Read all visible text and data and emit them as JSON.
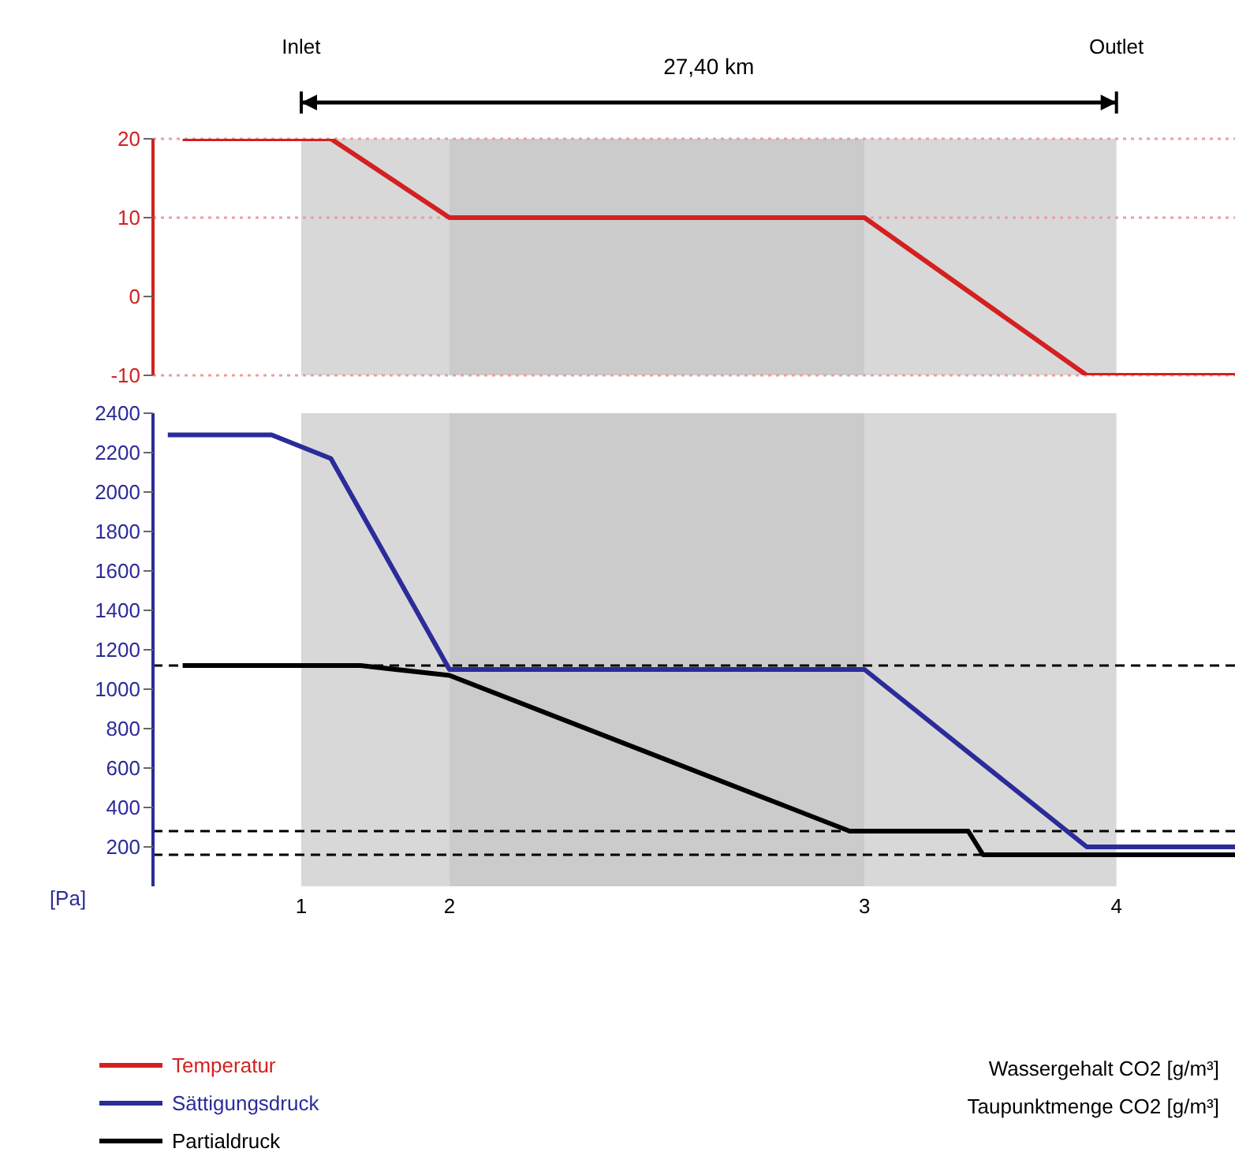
{
  "chart_data": [
    {
      "type": "line",
      "categories": [
        null,
        null,
        null,
        null,
        null,
        null,
        null,
        null,
        null,
        null,
        "1",
        null,
        null,
        null,
        null,
        null,
        null,
        null,
        null,
        null,
        "2",
        null,
        null,
        null,
        null,
        null,
        null,
        null,
        null,
        null,
        null,
        null,
        null,
        null,
        null,
        null,
        null,
        null,
        null,
        null,
        null,
        null,
        null,
        null,
        null,
        null,
        null,
        null,
        "3",
        null,
        null,
        null,
        null,
        null,
        null,
        null,
        null,
        null,
        null,
        null,
        null,
        null,
        null,
        null,
        null,
        "4",
        null,
        null,
        null,
        null,
        null,
        null,
        null,
        null
      ],
      "ylim": [
        -10,
        20
      ],
      "yticks": [
        -10,
        0,
        10,
        20
      ],
      "tick_labels": "y",
      "legend": "bottom left",
      "annotations": [
        "Inlet",
        "27,40 km",
        "Outlet"
      ],
      "series": [
        {
          "name": "Temperatur",
          "color": "#d42020",
          "values": [
            null,
            null,
            20,
            null,
            null,
            null,
            null,
            null,
            null,
            null,
            null,
            null,
            20,
            null,
            null,
            null,
            null,
            null,
            null,
            null,
            10,
            null,
            null,
            null,
            null,
            null,
            null,
            null,
            null,
            null,
            null,
            null,
            null,
            null,
            null,
            null,
            null,
            null,
            null,
            null,
            null,
            null,
            null,
            null,
            null,
            null,
            null,
            null,
            10,
            null,
            null,
            null,
            null,
            null,
            null,
            null,
            null,
            null,
            null,
            null,
            null,
            null,
            null,
            -10,
            null,
            null,
            null,
            null,
            null,
            null,
            null,
            null,
            null,
            -10
          ]
        }
      ],
      "ref_lines": [
        {
          "axis": "y",
          "value": 20,
          "color": "#e8a0a0",
          "line_style": "dotted"
        },
        {
          "axis": "y",
          "value": 10,
          "color": "#e8a0a0",
          "line_style": "dotted"
        },
        {
          "axis": "y",
          "value": -10,
          "color": "#e8a0a0",
          "line_style": "dotted"
        }
      ],
      "bands": [
        {
          "axis": "x",
          "from": "1",
          "to": "2",
          "color": "#a8a8a8"
        },
        {
          "axis": "x",
          "from": "2",
          "to": "3",
          "color": "#8c8c8c"
        },
        {
          "axis": "x",
          "from": "3",
          "to": "4",
          "color": "#a8a8a8"
        }
      ]
    },
    {
      "type": "line",
      "categories": [
        null,
        null,
        null,
        null,
        null,
        null,
        null,
        null,
        null,
        null,
        "1",
        null,
        null,
        null,
        null,
        null,
        null,
        null,
        null,
        null,
        "2",
        null,
        null,
        null,
        null,
        null,
        null,
        null,
        null,
        null,
        null,
        null,
        null,
        null,
        null,
        null,
        null,
        null,
        null,
        null,
        null,
        null,
        null,
        null,
        null,
        null,
        null,
        null,
        "3",
        null,
        null,
        null,
        null,
        null,
        null,
        null,
        null,
        null,
        null,
        null,
        null,
        null,
        null,
        null,
        null,
        "4",
        null,
        null,
        null,
        null,
        null,
        null,
        null,
        null
      ],
      "ylim": [
        0,
        2400
      ],
      "yticks": [
        200,
        400,
        600,
        800,
        1000,
        1200,
        1400,
        1600,
        1800,
        2000,
        2200,
        2400
      ],
      "ylabel": "[Pa]",
      "legend": "bottom left",
      "annotations": [
        "Wassergehalt CO2 [g/m³]",
        "Taupunktmenge CO2 [g/m³]"
      ],
      "series": [
        {
          "name": "Sättigungsdruck",
          "color": "#2b2b9a",
          "values": [
            null,
            2290,
            null,
            null,
            null,
            null,
            null,
            null,
            2290,
            null,
            null,
            null,
            2170,
            null,
            null,
            null,
            null,
            null,
            null,
            null,
            1100,
            null,
            null,
            null,
            null,
            null,
            null,
            null,
            null,
            null,
            null,
            null,
            null,
            null,
            null,
            null,
            null,
            null,
            null,
            null,
            null,
            null,
            null,
            null,
            null,
            null,
            null,
            null,
            1100,
            null,
            null,
            null,
            null,
            null,
            null,
            null,
            null,
            null,
            null,
            null,
            null,
            null,
            null,
            200,
            null,
            null,
            null,
            null,
            null,
            null,
            null,
            null,
            null,
            200
          ]
        },
        {
          "name": "Partialdruck",
          "color": "#000000",
          "values": [
            null,
            null,
            1120,
            null,
            null,
            null,
            null,
            null,
            null,
            null,
            null,
            null,
            null,
            null,
            1120,
            null,
            null,
            null,
            null,
            null,
            1070,
            null,
            null,
            null,
            null,
            null,
            null,
            null,
            null,
            null,
            null,
            null,
            null,
            null,
            null,
            null,
            null,
            null,
            null,
            null,
            null,
            null,
            null,
            null,
            null,
            null,
            null,
            280,
            null,
            null,
            null,
            null,
            null,
            null,
            null,
            280,
            160,
            null,
            null,
            null,
            null,
            null,
            null,
            null,
            null,
            null,
            null,
            null,
            null,
            null,
            null,
            null,
            null,
            160
          ]
        }
      ],
      "ref_lines": [
        {
          "axis": "y",
          "value": 1120,
          "color": "#000000",
          "line_style": "dashed"
        },
        {
          "axis": "y",
          "value": 280,
          "color": "#000000",
          "line_style": "dashed"
        },
        {
          "axis": "y",
          "value": 160,
          "color": "#000000",
          "line_style": "dashed"
        }
      ],
      "bands": [
        {
          "axis": "x",
          "from": "1",
          "to": "2",
          "color": "#a8a8a8"
        },
        {
          "axis": "x",
          "from": "2",
          "to": "3",
          "color": "#8c8c8c"
        },
        {
          "axis": "x",
          "from": "3",
          "to": "4",
          "color": "#a8a8a8"
        }
      ]
    }
  ]
}
